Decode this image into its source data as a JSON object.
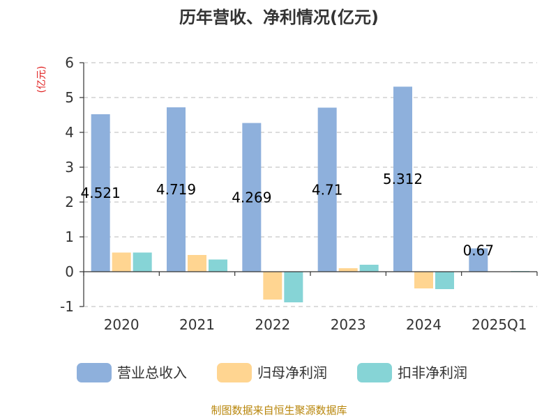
{
  "chart_data": {
    "type": "bar",
    "title": "历年营收、净利情况(亿元)",
    "ylabel": "(亿元)",
    "categories": [
      "2020",
      "2021",
      "2022",
      "2023",
      "2024",
      "2025Q1"
    ],
    "series": [
      {
        "name": "营业总收入",
        "color": "#8eb0dc",
        "values": [
          4.521,
          4.719,
          4.269,
          4.71,
          5.312,
          0.67
        ],
        "labels": [
          "4.521",
          "4.719",
          "4.269",
          "4.71",
          "5.312",
          "0.67"
        ]
      },
      {
        "name": "归母净利润",
        "color": "#ffd591",
        "values": [
          0.55,
          0.48,
          -0.8,
          0.1,
          -0.48,
          0.01
        ]
      },
      {
        "name": "扣非净利润",
        "color": "#86d4d6",
        "values": [
          0.55,
          0.35,
          -0.88,
          0.2,
          -0.5,
          0.02
        ]
      }
    ],
    "ylim": [
      -1,
      6
    ],
    "yticks": [
      -1,
      0,
      1,
      2,
      3,
      4,
      5,
      6
    ],
    "grid": true,
    "legend_position": "bottom"
  },
  "footer": {
    "source": "制图数据来自恒生聚源数据库"
  }
}
